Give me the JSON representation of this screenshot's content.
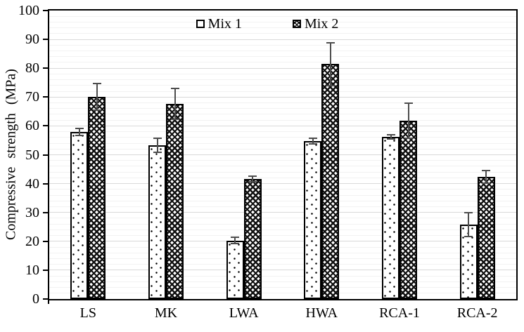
{
  "chart_data": {
    "type": "bar",
    "title": "",
    "xlabel": "",
    "ylabel": "Compressive strength (MPa)",
    "ylim": [
      0,
      100
    ],
    "ytick_step": 10,
    "minor_gridline_step": 2,
    "grid": "horizontal-major-and-minor",
    "legend_position": "top-center",
    "categories": [
      "LS",
      "MK",
      "LWA",
      "HWA",
      "RCA-1",
      "RCA-2"
    ],
    "series": [
      {
        "name": "Mix 1",
        "pattern": "white-with-black-dots",
        "values": [
          58.0,
          53.2,
          20.3,
          54.8,
          56.2,
          25.8
        ],
        "error_bars": [
          1.2,
          2.4,
          1.0,
          1.0,
          0.7,
          4.2
        ]
      },
      {
        "name": "Mix 2",
        "pattern": "black-diamond-mesh",
        "values": [
          70.0,
          67.6,
          41.6,
          81.4,
          61.8,
          42.4
        ],
        "error_bars": [
          4.6,
          5.4,
          1.0,
          7.4,
          6.0,
          2.2
        ]
      }
    ],
    "yticks": [
      0,
      10,
      20,
      30,
      40,
      50,
      60,
      70,
      80,
      90,
      100
    ]
  },
  "colors": {
    "background": "#ffffff",
    "axis": "#000000",
    "bar_border": "#000000",
    "error_bar": "#4d4d4d",
    "gridline_major": "#d9d9d9",
    "gridline_minor": "#f2f2f2"
  }
}
